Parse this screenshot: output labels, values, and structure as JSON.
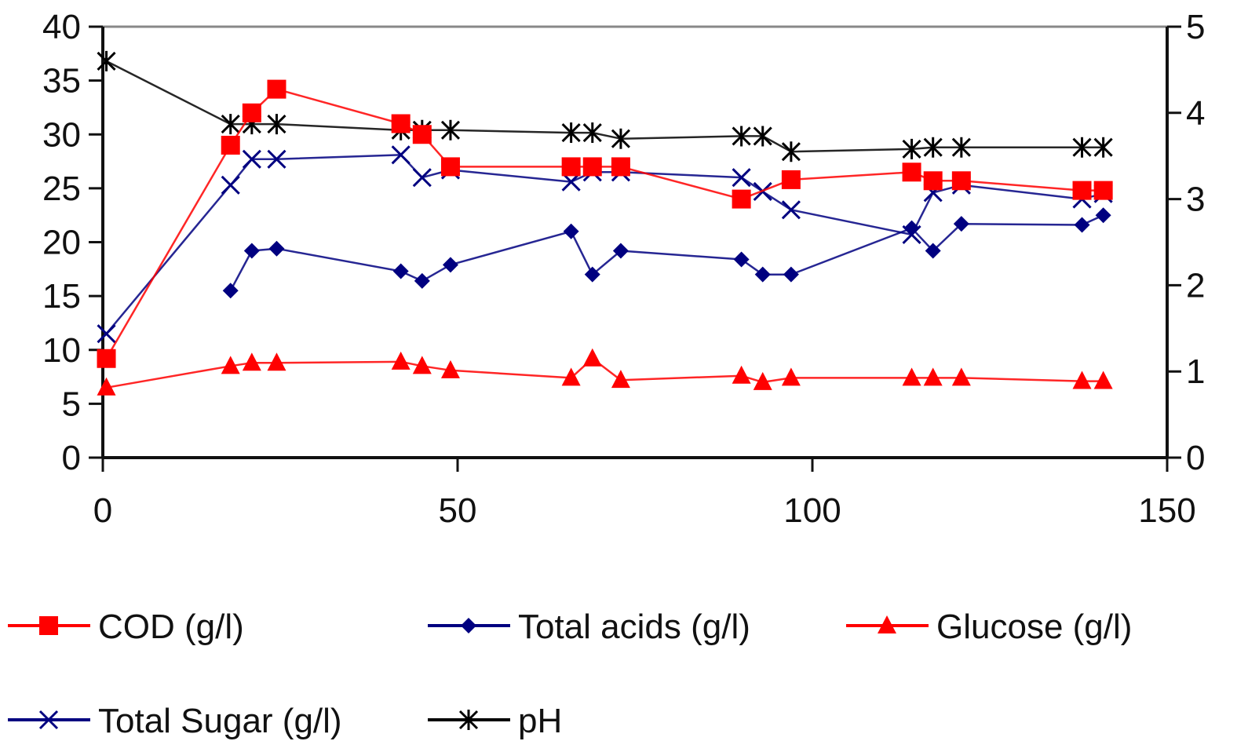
{
  "chart_data": {
    "type": "line",
    "title": "",
    "xlabel": "",
    "ylabel": "",
    "y2label": "",
    "xlim": [
      0,
      150
    ],
    "ylim": [
      0,
      40
    ],
    "y2lim": [
      0,
      5
    ],
    "x_ticks": [
      "0",
      "50",
      "100",
      "150"
    ],
    "y_ticks": [
      "0",
      "5",
      "10",
      "15",
      "20",
      "25",
      "30",
      "35",
      "40"
    ],
    "y2_ticks": [
      "0",
      "1",
      "2",
      "3",
      "4",
      "5"
    ],
    "grid": false,
    "legend_position": "bottom",
    "series": [
      {
        "name": "COD (g/l)",
        "axis": "left",
        "color": "#ff0000",
        "marker": "square",
        "x": [
          0.5,
          18,
          21,
          24.5,
          42,
          45,
          49,
          66,
          69,
          73,
          90,
          97,
          114,
          117,
          121,
          138,
          141
        ],
        "y": [
          9.2,
          29,
          32,
          34.2,
          31,
          30,
          27,
          27,
          27,
          27,
          24,
          25.8,
          26.5,
          25.7,
          25.7,
          24.8,
          24.8
        ]
      },
      {
        "name": "Total acids (g/l)",
        "axis": "left",
        "color": "#000080",
        "marker": "diamond",
        "x": [
          18,
          21,
          24.5,
          42,
          45,
          49,
          66,
          69,
          73,
          90,
          93,
          97,
          114,
          117,
          121,
          138,
          141
        ],
        "y": [
          15.5,
          19.2,
          19.4,
          17.3,
          16.4,
          17.9,
          21,
          17,
          19.2,
          18.4,
          17,
          17,
          21.3,
          19.2,
          21.7,
          21.6,
          22.5
        ]
      },
      {
        "name": "Glucose (g/l)",
        "axis": "left",
        "color": "#ff0000",
        "marker": "triangle",
        "x": [
          0.5,
          18,
          21,
          24.5,
          42,
          45,
          49,
          66,
          69,
          73,
          90,
          93,
          97,
          114,
          117,
          121,
          138,
          141
        ],
        "y": [
          6.5,
          8.5,
          8.8,
          8.8,
          8.9,
          8.5,
          8.1,
          7.4,
          9.2,
          7.2,
          7.6,
          7,
          7.4,
          7.4,
          7.4,
          7.4,
          7.1,
          7.1
        ]
      },
      {
        "name": "Total Sugar (g/l)",
        "axis": "left",
        "color": "#000080",
        "marker": "x",
        "x": [
          0.5,
          18,
          21,
          24.5,
          42,
          45,
          49,
          66,
          69,
          73,
          90,
          93,
          97,
          114,
          117,
          121,
          138,
          141
        ],
        "y": [
          11.5,
          25.3,
          27.7,
          27.7,
          28.1,
          26,
          26.7,
          25.6,
          26.5,
          26.5,
          26,
          24.7,
          23,
          20.7,
          24.6,
          25.3,
          24,
          24.5
        ]
      },
      {
        "name": "pH",
        "axis": "right",
        "color": "#000000",
        "marker": "star",
        "x": [
          0.5,
          18,
          21,
          24.5,
          42,
          45,
          49,
          66,
          69,
          73,
          90,
          93,
          97,
          114,
          117,
          121,
          138,
          141
        ],
        "y": [
          4.6,
          3.87,
          3.87,
          3.87,
          3.8,
          3.8,
          3.8,
          3.77,
          3.77,
          3.7,
          3.73,
          3.73,
          3.55,
          3.58,
          3.6,
          3.6,
          3.6,
          3.6
        ]
      }
    ]
  }
}
